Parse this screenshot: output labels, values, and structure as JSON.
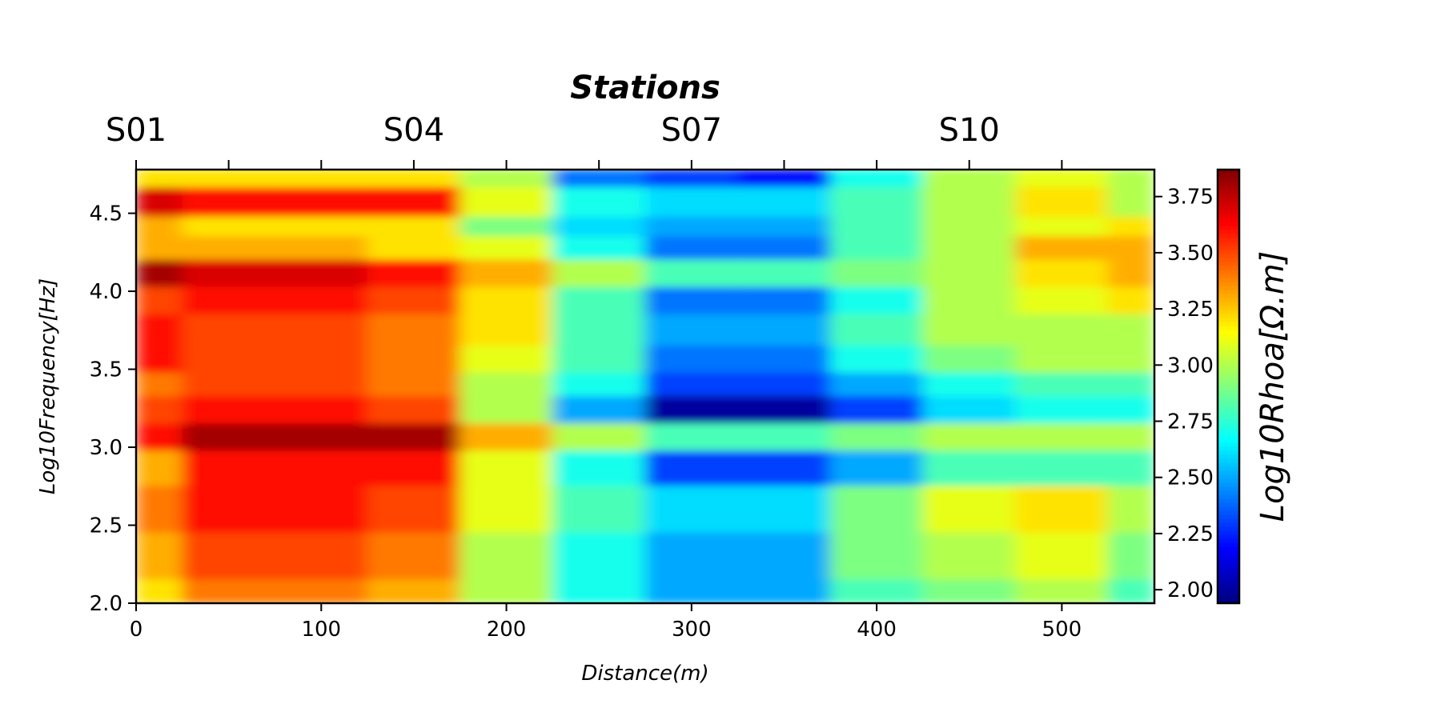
{
  "chart_data": {
    "type": "heatmap",
    "title": "Stations",
    "xlabel": "Distance(m)",
    "ylabel": "Log10Frequency[Hz]",
    "colorbar_label": "Log10Rhoa[Ω.m]",
    "xlim": [
      0,
      550
    ],
    "ylim": [
      2.0,
      4.78
    ],
    "x_ticks": [
      0,
      100,
      200,
      300,
      400,
      500
    ],
    "y_ticks": [
      "2.0",
      "2.5",
      "3.0",
      "3.5",
      "4.0",
      "4.5"
    ],
    "station_ticks": [
      0,
      50,
      100,
      150,
      200,
      250,
      300,
      350,
      400,
      450,
      500
    ],
    "station_labels": [
      {
        "label": "S01",
        "x": 0
      },
      {
        "label": "S04",
        "x": 150
      },
      {
        "label": "S07",
        "x": 300
      },
      {
        "label": "S10",
        "x": 450
      }
    ],
    "colorbar_range": [
      1.94,
      3.87
    ],
    "colorbar_ticks": [
      "2.00",
      "2.25",
      "2.50",
      "2.75",
      "3.00",
      "3.25",
      "3.50",
      "3.75"
    ],
    "colormap": "jet_r",
    "grid": false,
    "columns_x": [
      0,
      50,
      100,
      150,
      200,
      250,
      300,
      350,
      400,
      450,
      500,
      550
    ],
    "rows_log10freq": [
      4.78,
      4.55,
      4.4,
      4.3,
      4.1,
      3.95,
      3.75,
      3.55,
      3.4,
      3.25,
      3.05,
      2.9,
      2.6,
      2.3,
      2.0
    ],
    "log10rhoa_grid": [
      [
        3.2,
        3.2,
        3.2,
        3.2,
        3.0,
        2.4,
        2.3,
        2.2,
        2.7,
        3.0,
        3.1,
        3.0
      ],
      [
        3.7,
        3.6,
        3.6,
        3.6,
        3.1,
        2.7,
        2.6,
        2.6,
        2.8,
        3.0,
        3.2,
        3.0
      ],
      [
        3.3,
        3.2,
        3.2,
        3.2,
        2.9,
        2.6,
        2.5,
        2.5,
        2.8,
        3.0,
        3.1,
        3.2
      ],
      [
        3.3,
        3.3,
        3.3,
        3.2,
        3.1,
        2.7,
        2.4,
        2.4,
        2.8,
        3.0,
        3.3,
        3.3
      ],
      [
        3.8,
        3.7,
        3.7,
        3.6,
        3.3,
        3.0,
        2.8,
        2.8,
        2.9,
        3.0,
        3.2,
        3.3
      ],
      [
        3.5,
        3.6,
        3.6,
        3.5,
        3.2,
        2.8,
        2.4,
        2.4,
        2.7,
        3.0,
        3.1,
        3.2
      ],
      [
        3.6,
        3.5,
        3.5,
        3.4,
        3.2,
        2.8,
        2.5,
        2.5,
        2.8,
        3.0,
        3.0,
        3.0
      ],
      [
        3.6,
        3.5,
        3.5,
        3.4,
        3.1,
        2.8,
        2.4,
        2.4,
        2.7,
        2.9,
        3.0,
        3.0
      ],
      [
        3.4,
        3.5,
        3.5,
        3.4,
        3.0,
        2.7,
        2.3,
        2.3,
        2.5,
        2.7,
        2.8,
        2.8
      ],
      [
        3.5,
        3.6,
        3.6,
        3.5,
        3.0,
        2.5,
        2.0,
        2.0,
        2.3,
        2.6,
        2.7,
        2.7
      ],
      [
        3.6,
        3.8,
        3.8,
        3.8,
        3.3,
        3.0,
        2.8,
        2.8,
        2.9,
        3.0,
        3.0,
        3.0
      ],
      [
        3.3,
        3.6,
        3.6,
        3.6,
        3.1,
        2.7,
        2.3,
        2.3,
        2.5,
        2.8,
        2.8,
        2.8
      ],
      [
        3.4,
        3.6,
        3.6,
        3.5,
        3.1,
        2.8,
        2.6,
        2.6,
        2.9,
        3.1,
        3.2,
        3.0
      ],
      [
        3.3,
        3.5,
        3.5,
        3.4,
        3.0,
        2.7,
        2.5,
        2.5,
        2.9,
        3.0,
        3.1,
        2.9
      ],
      [
        3.2,
        3.4,
        3.4,
        3.3,
        3.0,
        2.7,
        2.5,
        2.5,
        2.8,
        2.9,
        3.0,
        2.8
      ]
    ]
  }
}
